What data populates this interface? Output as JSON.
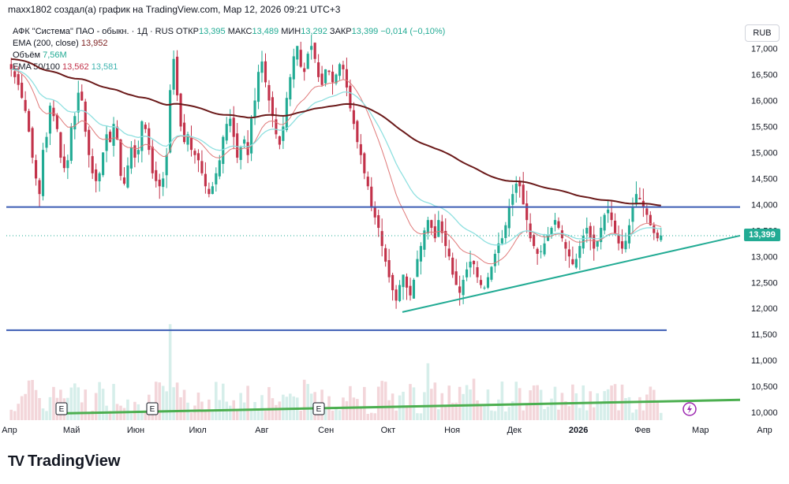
{
  "header": {
    "caption": "maxx1802 создал(а) график на TradingView.com, Мар 12, 2026 09:21 UTC+3"
  },
  "legend": {
    "symbol": "АФК \"Система\" ПАО - обыкн. · 1Д · RUS",
    "open_label": "ОТКР",
    "open": "13,395",
    "high_label": "МАКС",
    "high": "13,489",
    "low_label": "МИН",
    "low": "13,292",
    "close_label": "ЗАКР",
    "close": "13,399",
    "change": "−0,014 (−0,10%)",
    "ema200_label": "EMA (200, close)",
    "ema200_value": "13,952",
    "volume_label": "Объём",
    "volume_value": "7,56M",
    "ema50_label": "EMA 50/100",
    "ema50_value": "13,562",
    "ema100_value": "13,581"
  },
  "currency_button": "RUB",
  "price_tag": "13,399",
  "earnings_marker": "E",
  "logo_text": "TradingView",
  "chart_data": {
    "type": "candlestick",
    "title": "АФК \"Система\" ПАО - обыкн. · 1Д · RUS",
    "xlabel": "",
    "ylabel": "",
    "y_ticks": [
      "17,000",
      "16,500",
      "16,000",
      "15,500",
      "15,000",
      "14,500",
      "14,000",
      "13,500",
      "13,000",
      "12,500",
      "12,000",
      "11,500",
      "11,000",
      "10,500",
      "10,000"
    ],
    "y_values": [
      17,
      16.5,
      16,
      15.5,
      15,
      14.5,
      14,
      13.5,
      13,
      12.5,
      12,
      11.5,
      11,
      10.5,
      10
    ],
    "ylim": [
      9.85,
      17.6
    ],
    "x_ticks": [
      "Апр",
      "Май",
      "Июн",
      "Июл",
      "Авг",
      "Сен",
      "Окт",
      "Ноя",
      "Дек",
      "2026",
      "Фев",
      "Мар",
      "Апр"
    ],
    "x_tick_day_index": [
      0,
      30,
      61,
      91,
      122,
      153,
      183,
      214,
      244,
      275,
      306,
      334,
      365
    ],
    "day_count": 352,
    "closes": [
      16.6,
      16.45,
      16.3,
      16.05,
      15.8,
      15.4,
      14.9,
      14.5,
      14.2,
      15.05,
      15.3,
      15.9,
      15.7,
      15.45,
      14.9,
      14.7,
      14.85,
      15.5,
      15.7,
      16.15,
      16.0,
      15.4,
      14.95,
      14.6,
      14.45,
      14.6,
      15.0,
      15.35,
      15.2,
      15.55,
      15.25,
      14.55,
      14.4,
      14.75,
      15.1,
      14.9,
      15.05,
      15.6,
      15.45,
      15.05,
      14.6,
      14.45,
      14.35,
      14.5,
      14.95,
      16.2,
      16.8,
      16.1,
      15.5,
      15.2,
      15.35,
      15.05,
      14.95,
      14.85,
      14.6,
      14.35,
      14.2,
      14.35,
      14.6,
      14.85,
      15.3,
      15.55,
      15.65,
      15.3,
      14.9,
      15.1,
      15.25,
      14.95,
      15.65,
      16.0,
      16.55,
      16.75,
      16.35,
      16.0,
      15.7,
      15.35,
      15.15,
      15.5,
      16.05,
      16.45,
      16.85,
      17.05,
      16.65,
      16.55,
      16.9,
      17.05,
      16.8,
      16.45,
      16.3,
      16.6,
      16.55,
      16.35,
      16.5,
      16.7,
      16.6,
      16.25,
      15.85,
      15.55,
      15.2,
      14.95,
      14.6,
      14.35,
      13.95,
      13.75,
      13.55,
      13.2,
      12.9,
      12.6,
      12.35,
      12.15,
      12.45,
      12.65,
      12.4,
      12.25,
      12.55,
      12.95,
      13.2,
      13.5,
      13.7,
      13.55,
      13.35,
      13.7,
      13.45,
      13.2,
      13.0,
      12.65,
      12.45,
      12.3,
      12.55,
      12.75,
      12.9,
      12.85,
      12.6,
      12.45,
      12.4,
      12.6,
      12.8,
      13.05,
      13.25,
      13.35,
      13.6,
      13.95,
      14.2,
      14.4,
      14.35,
      14.0,
      13.7,
      13.35,
      13.2,
      13.05,
      13.1,
      13.25,
      13.4,
      13.55,
      13.7,
      13.55,
      13.35,
      13.15,
      13.0,
      12.85,
      12.95,
      13.2,
      13.4,
      13.55,
      13.35,
      13.15,
      13.3,
      13.55,
      13.8,
      13.9,
      13.7,
      13.45,
      13.25,
      13.15,
      13.3,
      13.6,
      13.95,
      14.2,
      14.1,
      13.95,
      13.8,
      13.6,
      13.45,
      13.35,
      13.4
    ]
  }
}
